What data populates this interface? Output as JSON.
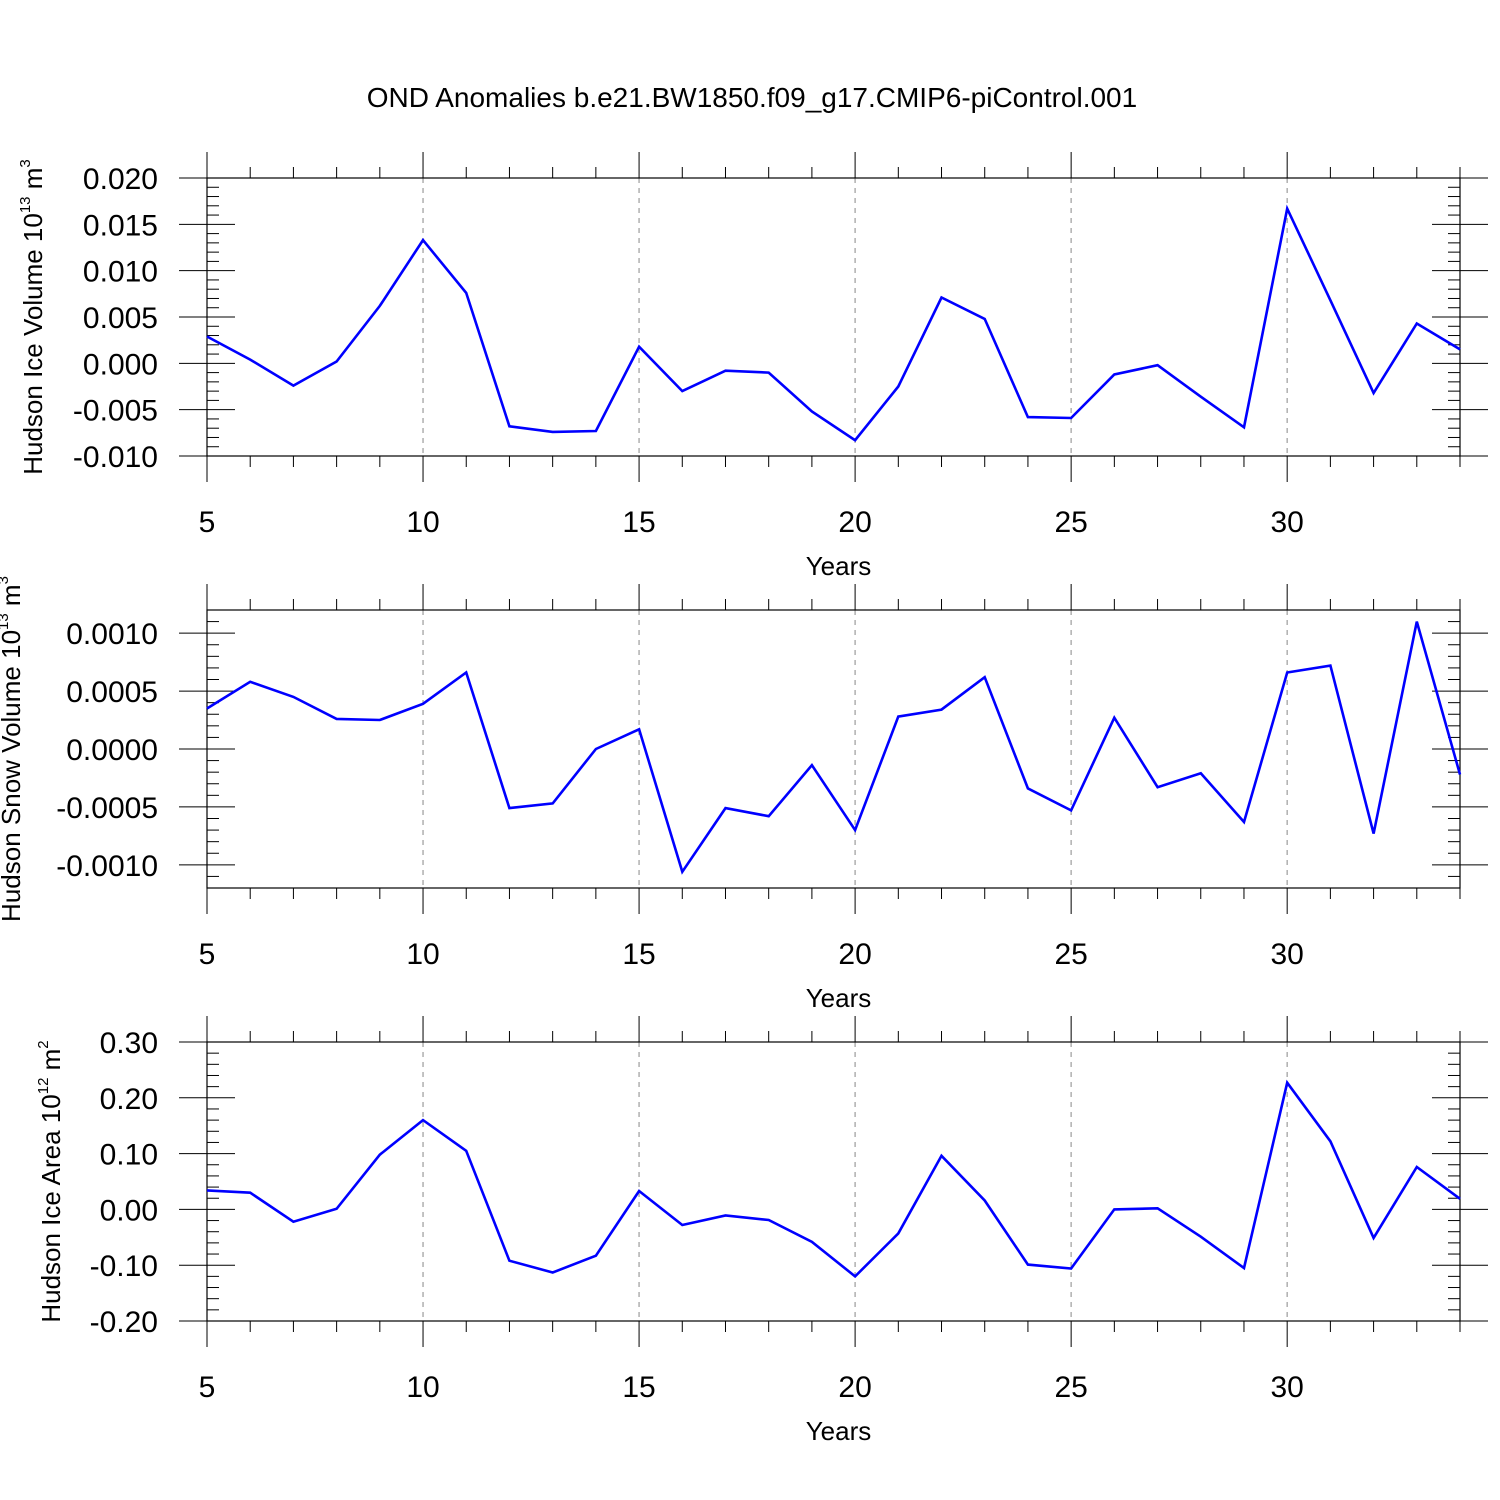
{
  "title": "OND Anomalies b.e21.BW1850.f09_g17.CMIP6-piControl.001",
  "colors": {
    "line": "#0000ff",
    "axis": "#000000",
    "grid": "#aaaaaa",
    "background": "#ffffff"
  },
  "chart_data": [
    {
      "type": "line",
      "name": "hudson-ice-volume",
      "ylabel": {
        "text": "Hudson Ice Volume 10",
        "exponent": "13",
        "unit": " m",
        "unit_exponent": "3"
      },
      "xlabel": "Years",
      "xlim": [
        5,
        34
      ],
      "ylim": [
        -0.01,
        0.02
      ],
      "x_ticks": [
        5,
        10,
        15,
        20,
        25,
        30
      ],
      "x_tick_labels": [
        "5",
        "10",
        "15",
        "20",
        "25",
        "30"
      ],
      "y_ticks": [
        -0.01,
        -0.005,
        0.0,
        0.005,
        0.01,
        0.015,
        0.02
      ],
      "y_tick_labels": [
        "-0.010",
        "-0.005",
        "0.000",
        "0.005",
        "0.010",
        "0.015",
        "0.020"
      ],
      "y_minor_step": 0.001,
      "x_grid": true,
      "x": [
        5,
        6,
        7,
        8,
        9,
        10,
        11,
        12,
        13,
        14,
        15,
        16,
        17,
        18,
        19,
        20,
        21,
        22,
        23,
        24,
        25,
        26,
        27,
        28,
        29,
        30,
        31,
        32,
        33,
        34
      ],
      "values": [
        0.0029,
        0.0004,
        -0.0024,
        0.0002,
        0.0062,
        0.0133,
        0.0076,
        -0.0068,
        -0.0074,
        -0.0073,
        0.0018,
        -0.003,
        -0.0008,
        -0.001,
        -0.0052,
        -0.0083,
        -0.0025,
        0.0071,
        0.0048,
        -0.0058,
        -0.0059,
        -0.0012,
        -0.0002,
        -0.0036,
        -0.0069,
        0.0167,
        0.0068,
        -0.0032,
        0.0043,
        0.0015
      ]
    },
    {
      "type": "line",
      "name": "hudson-snow-volume",
      "ylabel": {
        "text": "Hudson Snow Volume 10",
        "exponent": "13",
        "unit": " m",
        "unit_exponent": "3"
      },
      "xlabel": "Years",
      "xlim": [
        5,
        34
      ],
      "ylim": [
        -0.0012,
        0.0012
      ],
      "x_ticks": [
        5,
        10,
        15,
        20,
        25,
        30
      ],
      "x_tick_labels": [
        "5",
        "10",
        "15",
        "20",
        "25",
        "30"
      ],
      "y_ticks": [
        -0.001,
        -0.0005,
        0.0,
        0.0005,
        0.001
      ],
      "y_tick_labels": [
        "-0.0010",
        "-0.0005",
        "0.0000",
        "0.0005",
        "0.0010"
      ],
      "y_minor_step": 0.0001,
      "x_grid": true,
      "x": [
        5,
        6,
        7,
        8,
        9,
        10,
        11,
        12,
        13,
        14,
        15,
        16,
        17,
        18,
        19,
        20,
        21,
        22,
        23,
        24,
        25,
        26,
        27,
        28,
        29,
        30,
        31,
        32,
        33,
        34
      ],
      "values": [
        0.00035,
        0.00058,
        0.00045,
        0.00026,
        0.00025,
        0.00039,
        0.00066,
        -0.00051,
        -0.00047,
        0.0,
        0.00017,
        -0.00106,
        -0.00051,
        -0.00058,
        -0.00014,
        -0.0007,
        0.00028,
        0.00034,
        0.00062,
        -0.00034,
        -0.00053,
        0.00027,
        -0.00033,
        -0.00021,
        -0.00063,
        0.00066,
        0.00072,
        -0.00073,
        0.0011,
        -0.00022
      ]
    },
    {
      "type": "line",
      "name": "hudson-ice-area",
      "ylabel": {
        "text": "Hudson Ice Area 10",
        "exponent": "12",
        "unit": " m",
        "unit_exponent": "2"
      },
      "xlabel": "Years",
      "xlim": [
        5,
        34
      ],
      "ylim": [
        -0.2,
        0.3
      ],
      "x_ticks": [
        5,
        10,
        15,
        20,
        25,
        30
      ],
      "x_tick_labels": [
        "5",
        "10",
        "15",
        "20",
        "25",
        "30"
      ],
      "y_ticks": [
        -0.2,
        -0.1,
        0.0,
        0.1,
        0.2,
        0.3
      ],
      "y_tick_labels": [
        "-0.20",
        "-0.10",
        "0.00",
        "0.10",
        "0.20",
        "0.30"
      ],
      "y_minor_step": 0.02,
      "x_grid": true,
      "x": [
        5,
        6,
        7,
        8,
        9,
        10,
        11,
        12,
        13,
        14,
        15,
        16,
        17,
        18,
        19,
        20,
        21,
        22,
        23,
        24,
        25,
        26,
        27,
        28,
        29,
        30,
        31,
        32,
        33,
        34
      ],
      "values": [
        0.034,
        0.03,
        -0.022,
        0.001,
        0.098,
        0.16,
        0.105,
        -0.092,
        -0.113,
        -0.083,
        0.033,
        -0.028,
        -0.011,
        -0.019,
        -0.058,
        -0.12,
        -0.043,
        0.096,
        0.016,
        -0.099,
        -0.106,
        0.0,
        0.002,
        -0.049,
        -0.105,
        0.227,
        0.122,
        -0.051,
        0.076,
        0.019
      ]
    }
  ]
}
